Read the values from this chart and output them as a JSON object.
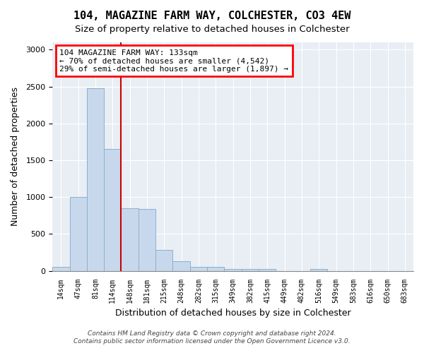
{
  "title1": "104, MAGAZINE FARM WAY, COLCHESTER, CO3 4EW",
  "title2": "Size of property relative to detached houses in Colchester",
  "xlabel": "Distribution of detached houses by size in Colchester",
  "ylabel": "Number of detached properties",
  "footer1": "Contains HM Land Registry data © Crown copyright and database right 2024.",
  "footer2": "Contains public sector information licensed under the Open Government Licence v3.0.",
  "annotation_line1": "104 MAGAZINE FARM WAY: 133sqm",
  "annotation_line2": "← 70% of detached houses are smaller (4,542)",
  "annotation_line3": "29% of semi-detached houses are larger (1,897) →",
  "bar_color": "#c8d8ec",
  "bar_edge_color": "#8ab0d0",
  "vline_color": "#cc0000",
  "background_color": "#e8eef4",
  "categories": [
    "14sqm",
    "47sqm",
    "81sqm",
    "114sqm",
    "148sqm",
    "181sqm",
    "215sqm",
    "248sqm",
    "282sqm",
    "315sqm",
    "349sqm",
    "382sqm",
    "415sqm",
    "449sqm",
    "482sqm",
    "516sqm",
    "549sqm",
    "583sqm",
    "616sqm",
    "650sqm",
    "683sqm"
  ],
  "values": [
    55,
    1000,
    2480,
    1650,
    850,
    840,
    280,
    130,
    55,
    50,
    30,
    30,
    30,
    0,
    0,
    30,
    0,
    0,
    0,
    0,
    0
  ],
  "ylim": [
    0,
    3100
  ],
  "yticks": [
    0,
    500,
    1000,
    1500,
    2000,
    2500,
    3000
  ],
  "vline_pos": 3.5,
  "title1_fontsize": 11,
  "title2_fontsize": 10
}
